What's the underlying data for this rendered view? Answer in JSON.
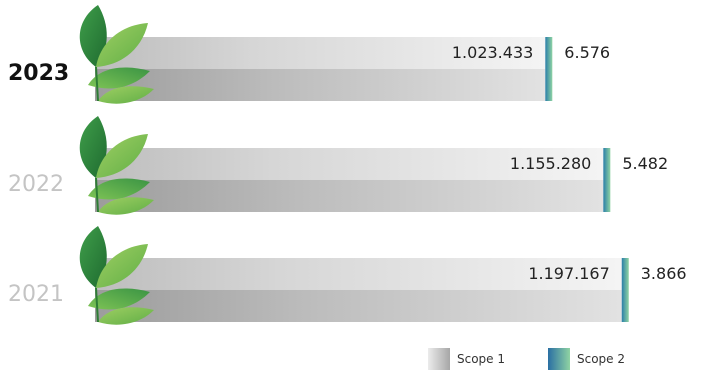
{
  "chart_data": {
    "type": "bar",
    "orientation": "horizontal",
    "stacked": true,
    "categories": [
      "2023",
      "2022",
      "2021"
    ],
    "highlight_category": "2023",
    "series": [
      {
        "name": "Scope 1",
        "values": [
          1023433,
          1155280,
          1197167
        ],
        "labels": [
          "1.023.433",
          "1.155.280",
          "1.197.167"
        ],
        "color": "#c9c9c9"
      },
      {
        "name": "Scope 2",
        "values": [
          6576,
          5482,
          3866
        ],
        "labels": [
          "6.576",
          "5.482",
          "3.866"
        ],
        "color": "#2a8aa6"
      }
    ],
    "xlim": [
      0,
      1250000
    ],
    "grid": false,
    "legend_position": "bottom-right",
    "decoration": "leaf-icon"
  }
}
